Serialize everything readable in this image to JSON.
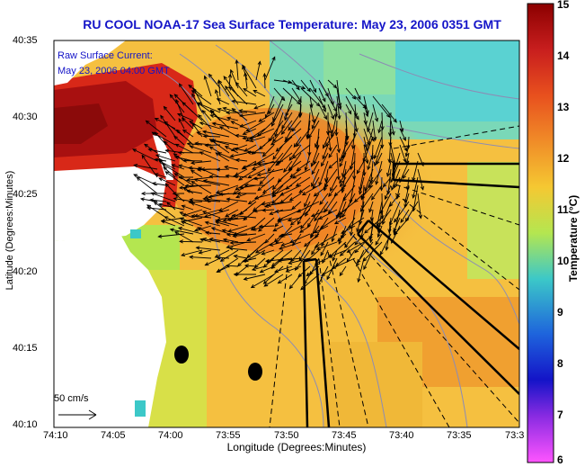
{
  "title": "RU COOL  NOAA-17  Sea Surface Temperature:  May 23, 2006 0351 GMT",
  "current_label": {
    "line1": "Raw Surface Current:",
    "line2": "May 23, 2006 04:00 GMT"
  },
  "scale_label": "50 cm/s",
  "x_axis": {
    "title": "Longitude (Degrees:Minutes)",
    "ticks": [
      "74:10",
      "74:05",
      "74:00",
      "73:55",
      "73:50",
      "73:45",
      "73:40",
      "73:35",
      "73:3"
    ]
  },
  "y_axis": {
    "title": "Latitude (Degrees:Minutes)",
    "ticks": [
      "40:35",
      "40:30",
      "40:25",
      "40:20",
      "40:15",
      "40:10"
    ]
  },
  "colorbar": {
    "title": "Temperature (°C)",
    "ticks": [
      "15",
      "14",
      "13",
      "12",
      "11",
      "10",
      "9",
      "8",
      "7",
      "6"
    ],
    "colors": [
      "#8b0000",
      "#c81e1e",
      "#e8501e",
      "#f08c28",
      "#f5c832",
      "#b4e650",
      "#3cc8c8",
      "#1e64dc",
      "#1414c8",
      "#8a2be2",
      "#ff55ff"
    ]
  },
  "map_colors": {
    "warm_core": "#f09628",
    "hot_land_edge": "#c81414",
    "dark_red": "#8b0a0a",
    "cool_water": "#5ad2d2",
    "green_water": "#a0dc50",
    "land": "#ffffff",
    "vector": "#000000",
    "contour": "#8c8cb4"
  }
}
